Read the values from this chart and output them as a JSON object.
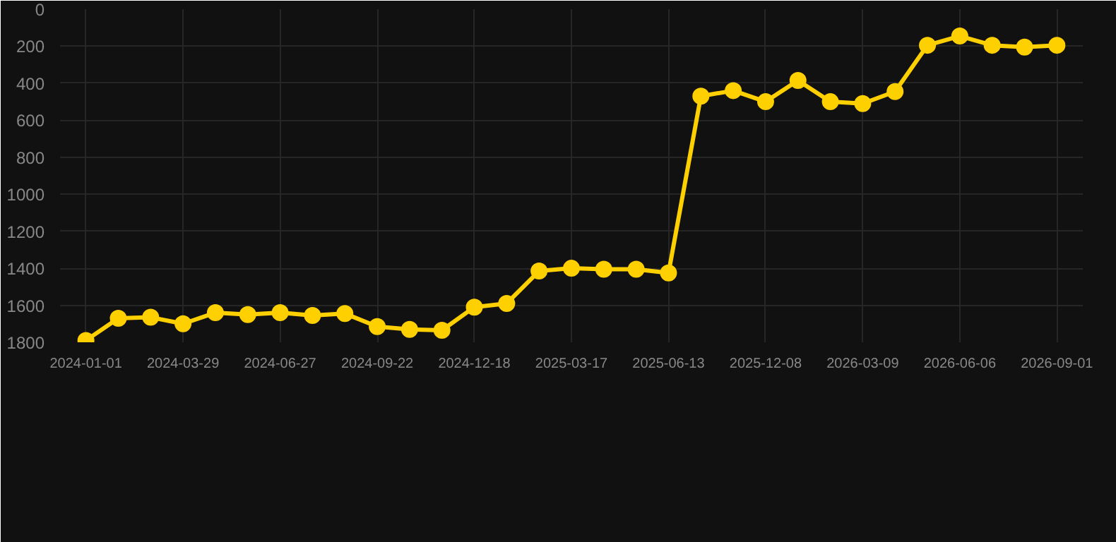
{
  "chart_data": {
    "type": "line",
    "categories": [
      "2024-01-01",
      null,
      null,
      "2024-03-29",
      null,
      null,
      "2024-06-27",
      null,
      null,
      "2024-09-22",
      null,
      null,
      "2024-12-18",
      null,
      null,
      "2025-03-17",
      null,
      null,
      "2025-06-13",
      null,
      null,
      "2025-12-08",
      null,
      null,
      "2026-03-09",
      null,
      null,
      "2026-06-06",
      null,
      null,
      "2026-09-01"
    ],
    "series": [
      {
        "color": "#ffd000",
        "values": [
          1790,
          1670,
          1665,
          1700,
          1640,
          1650,
          1640,
          1655,
          1645,
          1715,
          1730,
          1735,
          1610,
          1590,
          1415,
          1400,
          1405,
          1405,
          1425,
          470,
          440,
          500,
          385,
          500,
          510,
          445,
          195,
          145,
          195,
          205,
          195
        ]
      }
    ],
    "ylim": [
      1800,
      0
    ],
    "yticks": [
      0,
      200,
      400,
      600,
      800,
      1000,
      1200,
      1400,
      1600,
      1800
    ],
    "grid": true,
    "marker": "circle",
    "line_style": "solid"
  }
}
